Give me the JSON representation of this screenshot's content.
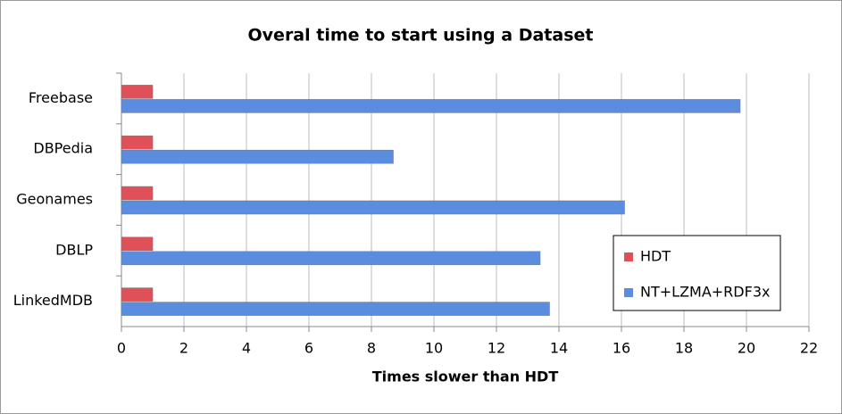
{
  "chart_data": {
    "type": "hbar",
    "title": "Overal time to start using a Dataset",
    "x_label": "Times slower than HDT",
    "categories": [
      "Freebase",
      "DBPedia",
      "Geonames",
      "DBLP",
      "LinkedMDB"
    ],
    "series": [
      {
        "name": "HDT",
        "color": "#e05058",
        "values": [
          1,
          1,
          1,
          1,
          1
        ]
      },
      {
        "name": "NT+LZMA+RDF3x",
        "color": "#5a8de0",
        "values": [
          19.8,
          8.7,
          16.1,
          13.4,
          13.7
        ]
      }
    ],
    "xlim": [
      0,
      22
    ],
    "xticks": [
      0,
      2,
      4,
      6,
      8,
      10,
      12,
      14,
      16,
      18,
      20,
      22
    ],
    "grid": true,
    "legend": "lower right"
  }
}
